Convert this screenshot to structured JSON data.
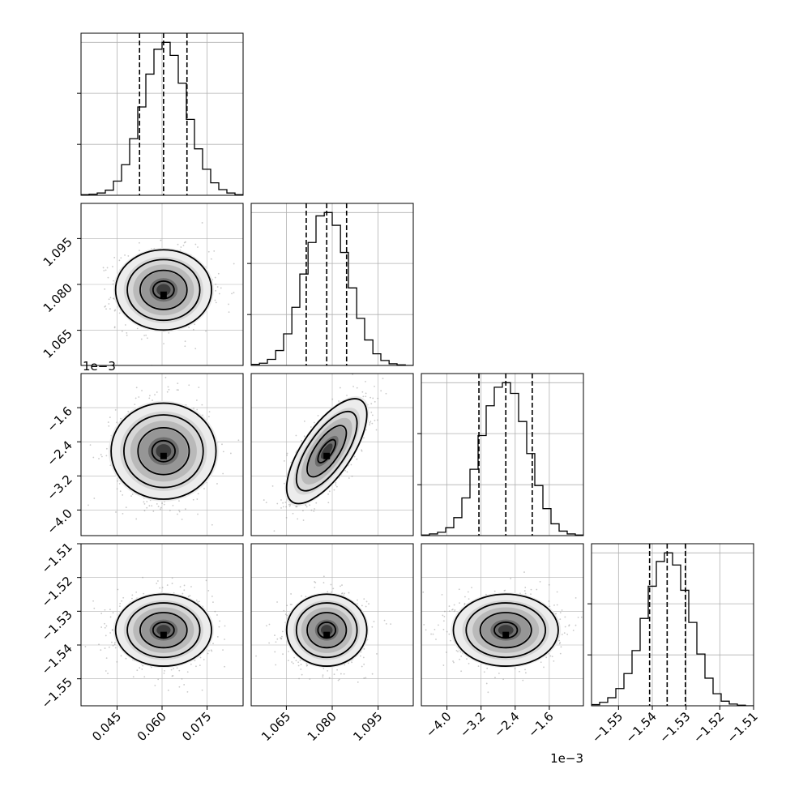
{
  "chart_data": {
    "type": "corner",
    "grid": true,
    "parameters": [
      {
        "range": [
          0.033,
          0.087
        ],
        "ticks": [
          0.045,
          0.06,
          0.075
        ],
        "tick_labels": [
          "0.045",
          "0.060",
          "0.075"
        ],
        "multiplier": ""
      },
      {
        "range": [
          1.0535,
          1.1065
        ],
        "ticks": [
          1.065,
          1.08,
          1.095
        ],
        "tick_labels": [
          "1.065",
          "1.080",
          "1.095"
        ],
        "multiplier": ""
      },
      {
        "range": [
          -4.6,
          -0.8
        ],
        "ticks": [
          -4.0,
          -3.2,
          -2.4,
          -1.6
        ],
        "tick_labels": [
          "−4.0",
          "−3.2",
          "−2.4",
          "−1.6"
        ],
        "multiplier": "1e−3"
      },
      {
        "range": [
          -1.558,
          -1.51
        ],
        "ticks": [
          -1.55,
          -1.54,
          -1.53,
          -1.52,
          -1.51
        ],
        "tick_labels": [
          "−1.55",
          "−1.54",
          "−1.53",
          "−1.52",
          "−1.51"
        ],
        "multiplier": ""
      }
    ],
    "marginals": [
      {
        "quantiles": [
          0.0525,
          0.0605,
          0.0683
        ],
        "bins": [
          0.033,
          0.0357,
          0.0384,
          0.0411,
          0.0438,
          0.0465,
          0.0492,
          0.0519,
          0.0546,
          0.0573,
          0.06,
          0.0627,
          0.0654,
          0.0681,
          0.0708,
          0.0735,
          0.0762,
          0.0789,
          0.0816,
          0.0843,
          0.087
        ],
        "counts": [
          1,
          2,
          4,
          9,
          25,
          54,
          100,
          156,
          214,
          258,
          270,
          247,
          198,
          134,
          82,
          46,
          22,
          10,
          4,
          1
        ]
      },
      {
        "quantiles": [
          1.0715,
          1.0782,
          1.0847
        ],
        "bins": [
          1.0535,
          1.0562,
          1.0588,
          1.0615,
          1.0641,
          1.0668,
          1.0694,
          1.0721,
          1.0747,
          1.0774,
          1.08,
          1.0827,
          1.0853,
          1.088,
          1.0906,
          1.0933,
          1.0959,
          1.0986,
          1.1012,
          1.1039,
          1.1065
        ],
        "counts": [
          2,
          4,
          11,
          27,
          57,
          105,
          165,
          222,
          270,
          276,
          253,
          204,
          140,
          85,
          46,
          21,
          9,
          3,
          1,
          0
        ]
      },
      {
        "quantiles": [
          -3.25,
          -2.62,
          -2.0
        ],
        "bins": [
          -4.6,
          -4.41,
          -4.22,
          -4.03,
          -3.84,
          -3.65,
          -3.46,
          -3.27,
          -3.08,
          -2.89,
          -2.7,
          -2.51,
          -2.32,
          -2.13,
          -1.94,
          -1.75,
          -1.56,
          -1.37,
          -1.18,
          -0.99,
          -0.8
        ],
        "counts": [
          1,
          3,
          6,
          14,
          32,
          67,
          118,
          178,
          231,
          264,
          272,
          253,
          203,
          146,
          89,
          48,
          21,
          8,
          3,
          1
        ]
      },
      {
        "quantiles": [
          -1.5408,
          -1.5356,
          -1.5302
        ],
        "bins": [
          -1.558,
          -1.5556,
          -1.5532,
          -1.5508,
          -1.5484,
          -1.546,
          -1.5436,
          -1.5412,
          -1.5388,
          -1.5364,
          -1.534,
          -1.5316,
          -1.5292,
          -1.5268,
          -1.5244,
          -1.522,
          -1.5196,
          -1.5172,
          -1.5148,
          -1.5124,
          -1.51
        ],
        "counts": [
          2,
          6,
          14,
          30,
          56,
          96,
          152,
          208,
          251,
          266,
          245,
          201,
          145,
          90,
          48,
          21,
          8,
          3,
          1,
          0
        ]
      }
    ],
    "posterior_mean": [
      0.0605,
      1.0782,
      -2.62,
      -1.5356
    ],
    "posterior_sd": [
      0.0078,
      0.0064,
      0.6,
      0.0052
    ],
    "correlations": {
      "1-0": 0.0,
      "2-0": 0.0,
      "2-1": 0.7,
      "3-0": 0.0,
      "3-1": 0.0,
      "3-2": 0.0
    }
  },
  "colors": {
    "contour": "#000000",
    "points": "#888888",
    "axis": "#000000",
    "grid": "#b0b0b0"
  }
}
